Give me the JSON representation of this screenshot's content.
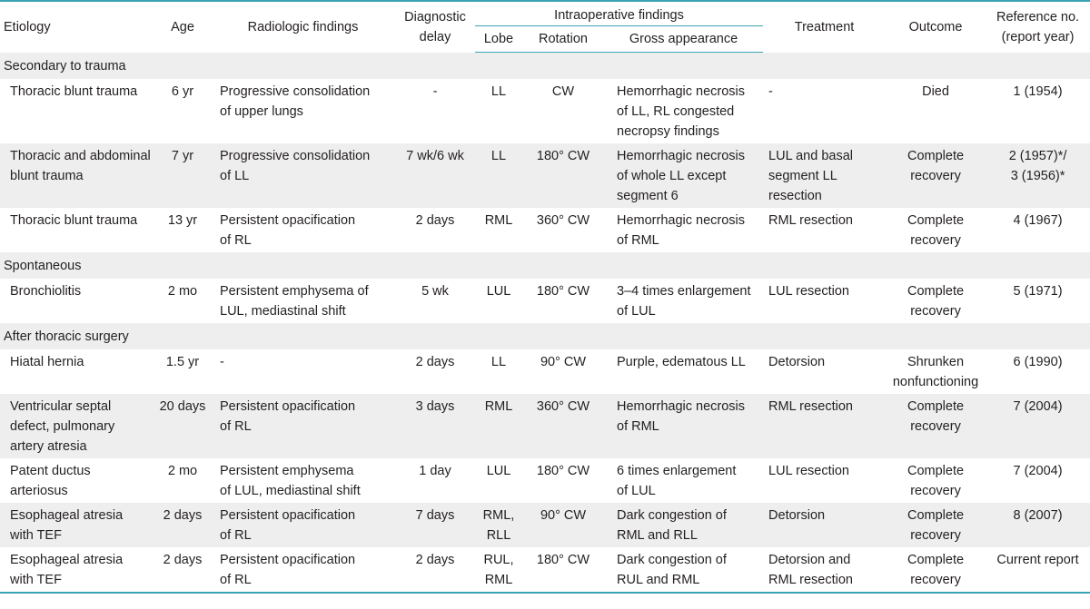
{
  "headers": {
    "etiology": "Etiology",
    "age": "Age",
    "radiologic": "Radiologic findings",
    "diagnostic_delay_1": "Diagnostic",
    "diagnostic_delay_2": "delay",
    "intraoperative": "Intraoperative findings",
    "lobe": "Lobe",
    "rotation": "Rotation",
    "gross": "Gross appearance",
    "treatment": "Treatment",
    "outcome": "Outcome",
    "reference_1": "Reference no.",
    "reference_2": "(report year)"
  },
  "sections": [
    {
      "title": "Secondary to trauma",
      "rows": [
        {
          "etiology": [
            "Thoracic blunt trauma"
          ],
          "age": "6 yr",
          "radiologic": [
            "Progressive consolidation",
            "of upper lungs"
          ],
          "delay": "-",
          "lobe": [
            "LL"
          ],
          "rotation": "CW",
          "gross": [
            "Hemorrhagic necrosis",
            "of LL, RL congested",
            "necropsy findings"
          ],
          "treatment": [
            "-"
          ],
          "outcome": [
            "Died"
          ],
          "reference": [
            "1 (1954)"
          ]
        },
        {
          "etiology": [
            "Thoracic and abdominal",
            "blunt trauma"
          ],
          "age": "7 yr",
          "radiologic": [
            "Progressive consolidation",
            "of LL"
          ],
          "delay": "7 wk/6 wk",
          "lobe": [
            "LL"
          ],
          "rotation": "180° CW",
          "gross": [
            "Hemorrhagic necrosis",
            "of whole LL except",
            "segment 6"
          ],
          "treatment": [
            "LUL and basal",
            "segment LL",
            "resection"
          ],
          "outcome": [
            "Complete",
            "recovery"
          ],
          "reference": [
            "2 (1957)*/",
            "3 (1956)*"
          ]
        },
        {
          "etiology": [
            "Thoracic blunt trauma"
          ],
          "age": "13 yr",
          "radiologic": [
            "Persistent opacification",
            "of RL"
          ],
          "delay": "2 days",
          "lobe": [
            "RML"
          ],
          "rotation": "360° CW",
          "gross": [
            "Hemorrhagic necrosis",
            "of RML"
          ],
          "treatment": [
            "RML resection"
          ],
          "outcome": [
            "Complete",
            "recovery"
          ],
          "reference": [
            "4 (1967)"
          ]
        }
      ]
    },
    {
      "title": "Spontaneous",
      "rows": [
        {
          "etiology": [
            "Bronchiolitis"
          ],
          "age": "2 mo",
          "radiologic": [
            "Persistent emphysema of",
            "LUL, mediastinal shift"
          ],
          "delay": "5 wk",
          "lobe": [
            "LUL"
          ],
          "rotation": "180° CW",
          "gross": [
            "3–4 times enlargement",
            "of LUL"
          ],
          "treatment": [
            "LUL resection"
          ],
          "outcome": [
            "Complete",
            "recovery"
          ],
          "reference": [
            "5 (1971)"
          ]
        }
      ]
    },
    {
      "title": "After thoracic surgery",
      "rows": [
        {
          "etiology": [
            "Hiatal hernia"
          ],
          "age": "1.5 yr",
          "radiologic": [
            "-"
          ],
          "delay": "2 days",
          "lobe": [
            "LL"
          ],
          "rotation": "90° CW",
          "gross": [
            "Purple, edematous LL"
          ],
          "treatment": [
            "Detorsion"
          ],
          "outcome": [
            "Shrunken",
            "nonfunctioning"
          ],
          "reference": [
            "6 (1990)"
          ]
        },
        {
          "etiology": [
            "Ventricular septal",
            "defect, pulmonary",
            "artery atresia"
          ],
          "age": "20 days",
          "radiologic": [
            "Persistent opacification",
            "of RL"
          ],
          "delay": "3 days",
          "lobe": [
            "RML"
          ],
          "rotation": "360° CW",
          "gross": [
            "Hemorrhagic necrosis",
            "of RML"
          ],
          "treatment": [
            "RML resection"
          ],
          "outcome": [
            "Complete",
            "recovery"
          ],
          "reference": [
            "7 (2004)"
          ]
        },
        {
          "etiology": [
            "Patent ductus",
            "arteriosus"
          ],
          "age": "2 mo",
          "radiologic": [
            "Persistent emphysema",
            "of LUL, mediastinal shift"
          ],
          "delay": "1 day",
          "lobe": [
            "LUL"
          ],
          "rotation": "180° CW",
          "gross": [
            "6 times enlargement",
            "of LUL"
          ],
          "treatment": [
            "LUL resection"
          ],
          "outcome": [
            "Complete",
            "recovery"
          ],
          "reference": [
            "7 (2004)"
          ]
        },
        {
          "etiology": [
            "Esophageal atresia",
            "with TEF"
          ],
          "age": "2 days",
          "radiologic": [
            "Persistent opacification",
            "of RL"
          ],
          "delay": "7 days",
          "lobe": [
            "RML,",
            "RLL"
          ],
          "rotation": "90° CW",
          "gross": [
            "Dark congestion of",
            "RML and RLL"
          ],
          "treatment": [
            "Detorsion"
          ],
          "outcome": [
            "Complete",
            "recovery"
          ],
          "reference": [
            "8 (2007)"
          ]
        },
        {
          "etiology": [
            "Esophageal atresia",
            "with TEF"
          ],
          "age": "2 days",
          "radiologic": [
            "Persistent opacification",
            "of RL"
          ],
          "delay": "2 days",
          "lobe": [
            "RUL,",
            "RML"
          ],
          "rotation": "180° CW",
          "gross": [
            "Dark congestion of",
            " RUL and RML"
          ],
          "treatment": [
            "Detorsion and",
            "RML resection"
          ],
          "outcome": [
            "Complete",
            "recovery"
          ],
          "reference": [
            "Current report"
          ]
        }
      ]
    }
  ]
}
